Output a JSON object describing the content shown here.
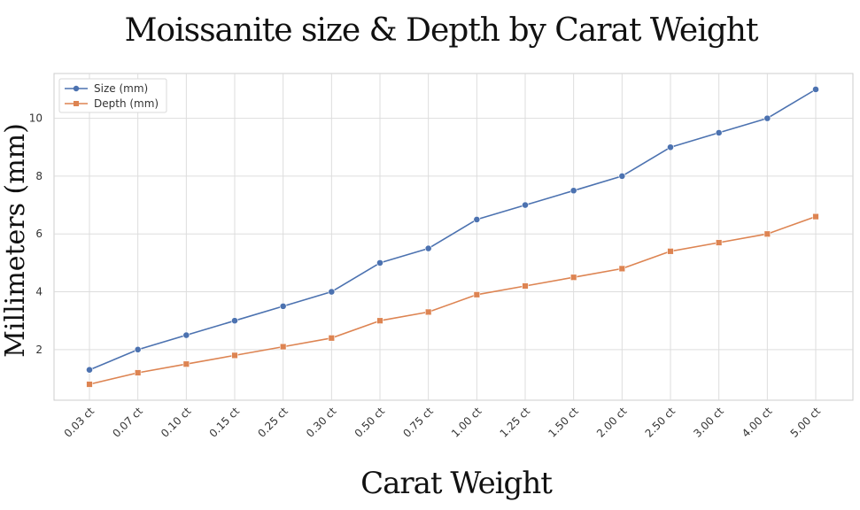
{
  "chart_data": {
    "type": "line",
    "title": "Moissanite size & Depth by Carat Weight",
    "xlabel": "Carat Weight",
    "ylabel": "Millimeters (mm)",
    "categories": [
      "0.03 ct",
      "0.07 ct",
      "0.10 ct",
      "0.15 ct",
      "0.25 ct",
      "0.30 ct",
      "0.50 ct",
      "0.75 ct",
      "1.00 ct",
      "1.25 ct",
      "1.50 ct",
      "2.00 ct",
      "2.50 ct",
      "3.00 ct",
      "4.00 ct",
      "5.00 ct"
    ],
    "series": [
      {
        "name": "Size (mm)",
        "color": "#4c72b0",
        "marker": "circle",
        "values": [
          1.3,
          2.0,
          2.5,
          3.0,
          3.5,
          4.0,
          5.0,
          5.5,
          6.5,
          7.0,
          7.5,
          8.0,
          9.0,
          9.5,
          10.0,
          11.0
        ]
      },
      {
        "name": "Depth (mm)",
        "color": "#dd8452",
        "marker": "square",
        "values": [
          0.8,
          1.2,
          1.5,
          1.8,
          2.1,
          2.4,
          3.0,
          3.3,
          3.9,
          4.2,
          4.5,
          4.8,
          5.4,
          5.7,
          6.0,
          6.6
        ]
      }
    ],
    "ylim": [
      0.25,
      11.55
    ],
    "yticks": [
      2,
      4,
      6,
      8,
      10
    ],
    "grid": true,
    "legend_position": "top-left"
  }
}
